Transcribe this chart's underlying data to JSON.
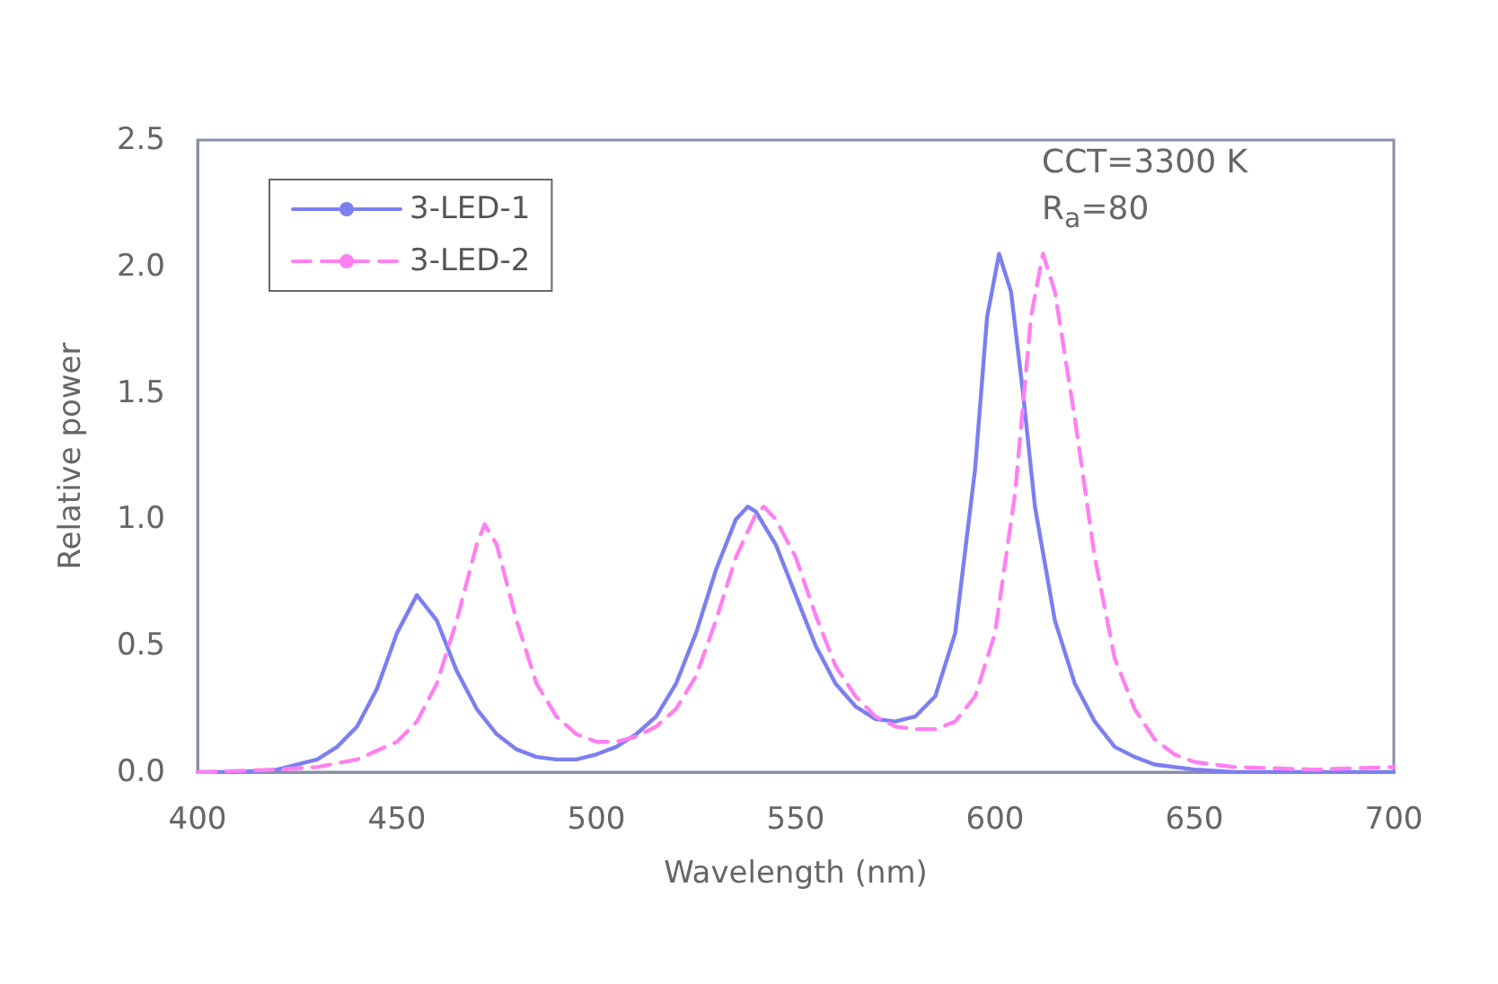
{
  "chart_data": {
    "type": "line",
    "xlabel": "Wavelength (nm)",
    "ylabel": "Relative power",
    "annotations": [
      "CCT=3300 K",
      "R$_{a}$=80"
    ],
    "xlim": [
      400,
      700
    ],
    "xticks": [
      400,
      450,
      500,
      550,
      600,
      650,
      700
    ],
    "ylim": [
      0,
      2.5
    ],
    "yticks": [
      {
        "value": 0,
        "label": "0.0"
      },
      {
        "value": 0.5,
        "label": "0.5"
      },
      {
        "value": 1,
        "label": "1.0"
      },
      {
        "value": 1.5,
        "label": "1.5"
      },
      {
        "value": 2,
        "label": "2.0"
      },
      {
        "value": 2.5,
        "label": "2.5"
      }
    ],
    "grid": false,
    "legend": "top left",
    "marker": "none",
    "series": [
      {
        "name": "3-LED-1",
        "color": "#7b7ff0",
        "line_style": "solid",
        "x": [
          400,
          410,
          420,
          430,
          435,
          440,
          445,
          450,
          455,
          460,
          465,
          470,
          475,
          480,
          485,
          490,
          495,
          500,
          505,
          510,
          515,
          520,
          525,
          530,
          535,
          538,
          540,
          545,
          550,
          555,
          560,
          565,
          570,
          575,
          580,
          585,
          590,
          595,
          598,
          601,
          604,
          607,
          610,
          615,
          620,
          625,
          630,
          635,
          640,
          650,
          660,
          700
        ],
        "values": [
          0,
          0,
          0.01,
          0.05,
          0.1,
          0.18,
          0.33,
          0.55,
          0.7,
          0.6,
          0.4,
          0.25,
          0.15,
          0.09,
          0.06,
          0.05,
          0.05,
          0.07,
          0.1,
          0.15,
          0.22,
          0.35,
          0.55,
          0.8,
          1.0,
          1.05,
          1.03,
          0.9,
          0.7,
          0.5,
          0.35,
          0.26,
          0.21,
          0.2,
          0.22,
          0.3,
          0.55,
          1.2,
          1.8,
          2.05,
          1.9,
          1.5,
          1.05,
          0.6,
          0.35,
          0.2,
          0.1,
          0.06,
          0.03,
          0.01,
          0,
          0
        ]
      },
      {
        "name": "3-LED-2",
        "color": "#ff80f0",
        "line_style": "dashed",
        "x": [
          400,
          420,
          430,
          440,
          450,
          455,
          460,
          465,
          470,
          472,
          475,
          480,
          485,
          490,
          495,
          500,
          505,
          510,
          515,
          520,
          525,
          530,
          535,
          540,
          542,
          545,
          550,
          555,
          560,
          565,
          570,
          575,
          580,
          585,
          590,
          595,
          600,
          605,
          609,
          612,
          615,
          620,
          625,
          630,
          635,
          640,
          645,
          650,
          660,
          680,
          700
        ],
        "values": [
          0,
          0.01,
          0.02,
          0.05,
          0.12,
          0.2,
          0.35,
          0.6,
          0.9,
          0.98,
          0.9,
          0.6,
          0.35,
          0.22,
          0.15,
          0.12,
          0.12,
          0.14,
          0.18,
          0.25,
          0.38,
          0.6,
          0.85,
          1.02,
          1.05,
          1.0,
          0.85,
          0.62,
          0.42,
          0.3,
          0.22,
          0.18,
          0.17,
          0.17,
          0.2,
          0.3,
          0.55,
          1.1,
          1.8,
          2.05,
          1.9,
          1.4,
          0.85,
          0.45,
          0.25,
          0.13,
          0.07,
          0.04,
          0.02,
          0.01,
          0.02
        ]
      }
    ]
  }
}
